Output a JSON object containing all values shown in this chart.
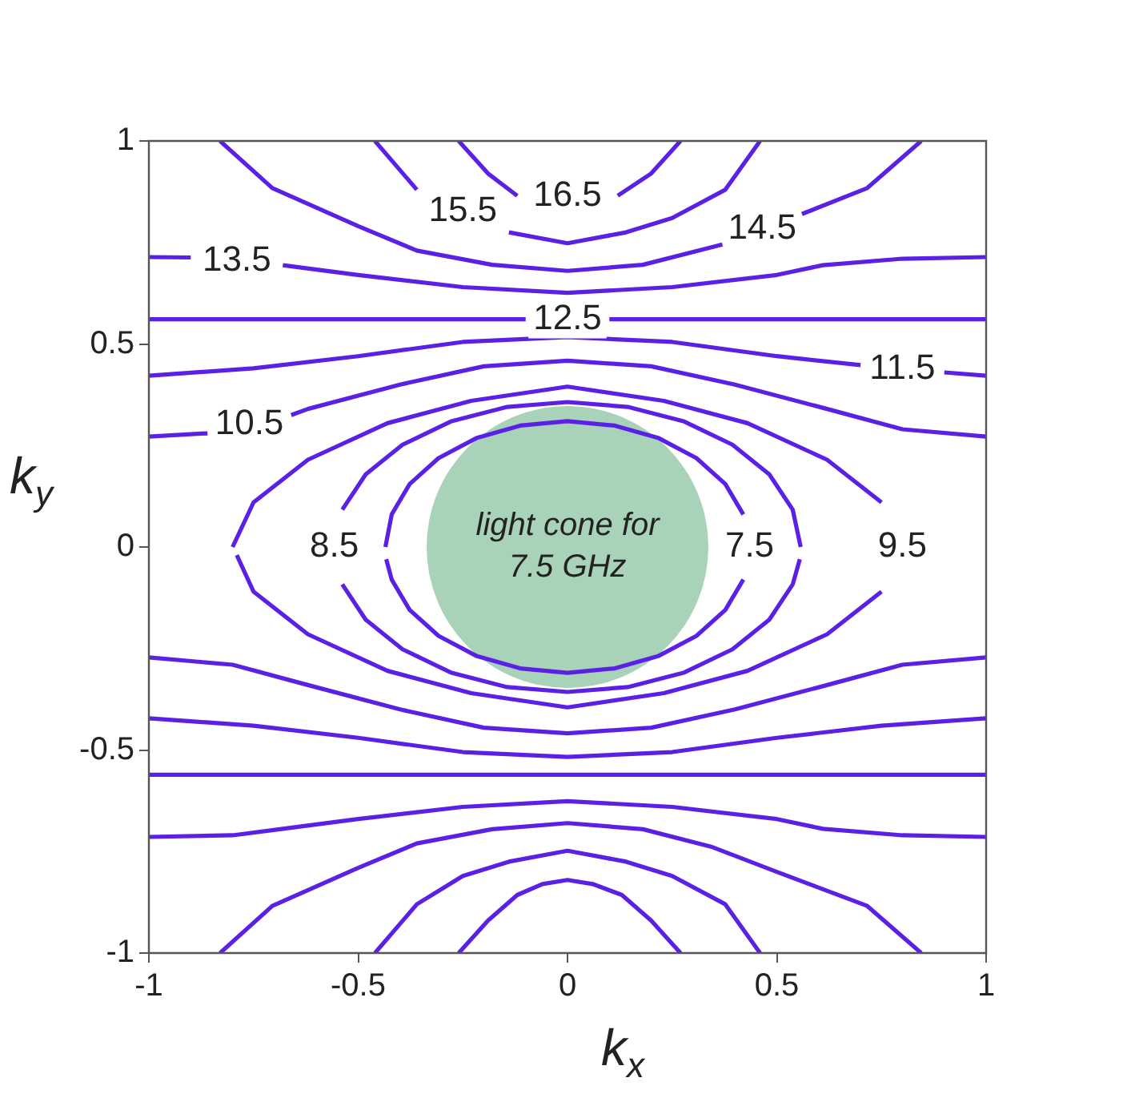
{
  "chart_data": {
    "type": "line",
    "xlabel": "k$_{x}$",
    "ylabel": "k$_{y}$",
    "xlim": [
      -1,
      1
    ],
    "ylim": [
      -1,
      1
    ],
    "xticks": [
      -1,
      -0.5,
      0,
      0.5,
      1
    ],
    "yticks": [
      -1,
      -0.5,
      0,
      0.5,
      1
    ],
    "grid": false,
    "legend": false,
    "series": [
      {
        "type": "bubble",
        "color": "#a9d3b8",
        "x": [
          0
        ],
        "values": [
          0
        ],
        "sizes": [
          1
        ]
      },
      {
        "name": "16.5",
        "color": "#5b20e6",
        "x": [
          -0.26,
          -0.19,
          -0.12,
          -0.06,
          0,
          0.06,
          0.12,
          0.2,
          0.27
        ],
        "values": [
          1,
          0.92,
          0.865,
          null,
          null,
          null,
          0.865,
          0.92,
          1
        ]
      },
      {
        "color": "#5b20e6",
        "x": [
          -0.46,
          -0.36,
          -0.25,
          -0.14,
          0,
          0.14,
          0.25,
          0.377,
          0.46
        ],
        "name": "15.5",
        "values": [
          1,
          0.88,
          null,
          0.775,
          0.748,
          0.775,
          0.81,
          0.88,
          1
        ]
      },
      {
        "color": "#5b20e6",
        "x": [
          -0.83,
          -0.705,
          -0.5,
          -0.36,
          -0.18,
          0,
          0.18,
          0.37,
          0.46,
          0.56,
          0.716,
          0.845
        ],
        "name": "14.5",
        "values": [
          1,
          0.884,
          0.79,
          0.73,
          0.695,
          0.68,
          0.695,
          0.745,
          null,
          0.82,
          0.884,
          1
        ]
      },
      {
        "color": "#5b20e6",
        "x": [
          -1,
          -0.9,
          -0.8,
          -0.68,
          -0.5,
          -0.25,
          0,
          0.25,
          0.5,
          0.61,
          0.8,
          1
        ],
        "name": "13.5",
        "values": [
          0.714,
          0.713,
          null,
          0.694,
          0.67,
          0.64,
          0.626,
          0.64,
          0.67,
          0.694,
          0.71,
          0.714
        ]
      },
      {
        "color": "#5b20e6",
        "x": [
          -1,
          -0.5,
          -0.1,
          0,
          0.1,
          0.5,
          1
        ],
        "name": "12.5",
        "values": [
          0.561,
          0.561,
          0.561,
          null,
          0.561,
          0.561,
          0.561
        ]
      },
      {
        "color": "#5b20e6",
        "x": [
          -1,
          -0.75,
          -0.5,
          -0.25,
          0,
          0.25,
          0.5,
          0.7,
          0.8,
          0.9,
          1
        ],
        "name": "11.5",
        "values": [
          0.422,
          0.44,
          0.47,
          0.505,
          0.517,
          0.505,
          0.47,
          0.448,
          null,
          0.43,
          0.422
        ]
      },
      {
        "color": "#5b20e6",
        "x": [
          -1,
          -0.86,
          -0.76,
          -0.66,
          -0.62,
          -0.4,
          -0.2,
          0,
          0.2,
          0.4,
          0.62,
          0.8,
          1
        ],
        "name": "10.5",
        "values": [
          0.272,
          0.28,
          null,
          0.325,
          0.34,
          0.4,
          0.445,
          0.459,
          0.445,
          0.4,
          0.34,
          0.29,
          0.272
        ]
      },
      {
        "color": "#5b20e6",
        "x": [
          -0.8,
          -0.75,
          -0.62,
          -0.43,
          -0.23,
          0,
          0.23,
          0.43,
          0.62,
          0.75
        ],
        "values": [
          0,
          0.11,
          0.215,
          0.305,
          0.36,
          0.395,
          0.36,
          0.305,
          0.215,
          0.11
        ]
      },
      {
        "color": "#5b20e6",
        "x": [
          -0.79,
          -0.75,
          -0.62,
          -0.43,
          -0.23,
          0,
          0.23,
          0.43,
          0.62,
          0.75
        ],
        "values": [
          -0.02,
          -0.11,
          -0.215,
          -0.305,
          -0.36,
          -0.395,
          -0.36,
          -0.305,
          -0.215,
          -0.11
        ]
      },
      {
        "color": "#5b20e6",
        "x": [
          -0.538,
          -0.482,
          -0.394,
          -0.279,
          -0.144,
          0,
          0.144,
          0.279,
          0.394,
          0.482,
          0.538,
          0.557
        ],
        "values": [
          0.092,
          0.179,
          0.252,
          0.309,
          0.345,
          0.357,
          0.345,
          0.309,
          0.252,
          0.179,
          0.092,
          0
        ]
      },
      {
        "color": "#5b20e6",
        "x": [
          -0.538,
          -0.482,
          -0.394,
          -0.279,
          -0.144,
          0,
          0.144,
          0.279,
          0.394,
          0.482,
          0.538,
          0.555
        ],
        "values": [
          -0.092,
          -0.179,
          -0.252,
          -0.309,
          -0.345,
          -0.357,
          -0.345,
          -0.309,
          -0.252,
          -0.179,
          -0.092,
          -0.03
        ]
      },
      {
        "color": "#5b20e6",
        "x": [
          -0.435,
          -0.42,
          -0.377,
          -0.308,
          -0.218,
          -0.113,
          0,
          0.113,
          0.218,
          0.308,
          0.377,
          0.42
        ],
        "values": [
          0,
          0.08,
          0.155,
          0.219,
          0.268,
          0.299,
          0.31,
          0.299,
          0.268,
          0.219,
          0.155,
          0.08
        ]
      },
      {
        "color": "#5b20e6",
        "x": [
          -0.433,
          -0.42,
          -0.377,
          -0.308,
          -0.218,
          -0.113,
          0,
          0.113,
          0.218,
          0.308,
          0.377,
          0.42
        ],
        "values": [
          -0.03,
          -0.08,
          -0.155,
          -0.219,
          -0.268,
          -0.299,
          -0.31,
          -0.299,
          -0.268,
          -0.219,
          -0.155,
          -0.08
        ]
      },
      {
        "color": "#5b20e6",
        "x": [
          -1,
          -0.8,
          -0.62,
          -0.4,
          -0.2,
          0,
          0.2,
          0.4,
          0.62,
          0.8,
          1
        ],
        "values": [
          -0.272,
          -0.29,
          -0.34,
          -0.4,
          -0.445,
          -0.459,
          -0.445,
          -0.4,
          -0.34,
          -0.29,
          -0.272
        ]
      },
      {
        "color": "#5b20e6",
        "x": [
          -1,
          -0.75,
          -0.5,
          -0.25,
          0,
          0.25,
          0.5,
          0.75,
          1
        ],
        "values": [
          -0.422,
          -0.44,
          -0.47,
          -0.505,
          -0.517,
          -0.505,
          -0.47,
          -0.44,
          -0.422
        ]
      },
      {
        "color": "#5b20e6",
        "x": [
          -1,
          -0.5,
          0,
          0.5,
          1
        ],
        "values": [
          -0.561,
          -0.561,
          -0.561,
          -0.561,
          -0.561
        ]
      },
      {
        "color": "#5b20e6",
        "x": [
          -1,
          -0.8,
          -0.68,
          -0.5,
          -0.25,
          0,
          0.25,
          0.5,
          0.61,
          0.8,
          1
        ],
        "values": [
          -0.714,
          -0.71,
          -0.694,
          -0.67,
          -0.64,
          -0.626,
          -0.64,
          -0.67,
          -0.694,
          -0.71,
          -0.714
        ]
      },
      {
        "color": "#5b20e6",
        "x": [
          -0.83,
          -0.705,
          -0.5,
          -0.36,
          -0.18,
          0,
          0.18,
          0.343,
          0.5,
          0.716,
          0.845
        ],
        "values": [
          -1,
          -0.884,
          -0.79,
          -0.73,
          -0.695,
          -0.68,
          -0.695,
          -0.738,
          -0.8,
          -0.884,
          -1
        ]
      },
      {
        "color": "#5b20e6",
        "x": [
          -0.46,
          -0.36,
          -0.25,
          -0.14,
          0,
          0.14,
          0.25,
          0.377,
          0.46
        ],
        "values": [
          -1,
          -0.88,
          -0.81,
          -0.775,
          -0.748,
          -0.775,
          -0.81,
          -0.88,
          -1
        ]
      },
      {
        "color": "#5b20e6",
        "x": [
          -0.26,
          -0.19,
          -0.12,
          -0.06,
          0,
          0.06,
          0.13,
          0.2,
          0.27
        ],
        "values": [
          -1,
          -0.92,
          -0.857,
          -0.83,
          -0.82,
          -0.83,
          -0.857,
          -0.92,
          -1
        ]
      }
    ],
    "annotations": [
      {
        "text": "8.5",
        "x": -0.557,
        "y": 0
      },
      {
        "text": "7.5",
        "x": 0.435,
        "y": 0
      },
      {
        "text": "9.5",
        "x": 0.8,
        "y": 0
      },
      {
        "text": "light cone for 7.5 GHz",
        "x": 0,
        "y": 0
      }
    ]
  }
}
